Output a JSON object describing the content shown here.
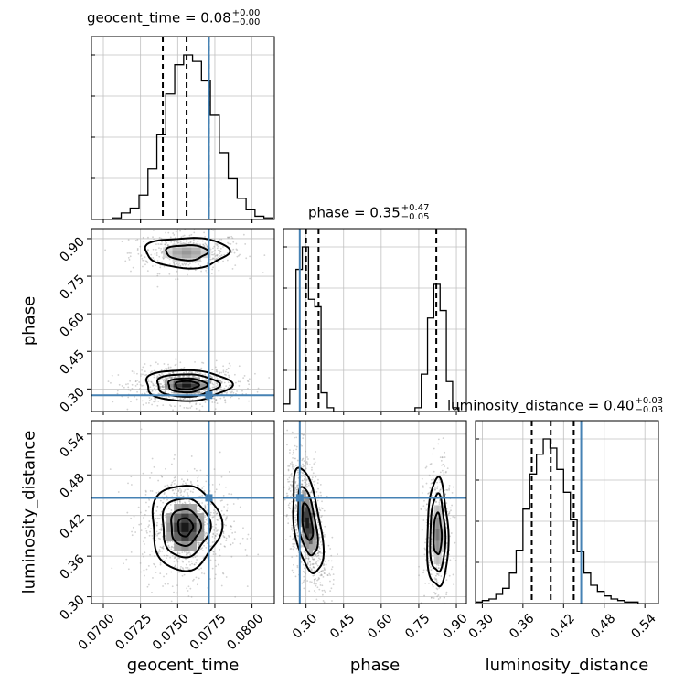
{
  "chart_data": {
    "type": "corner",
    "parameters": [
      "geocent_time",
      "phase",
      "luminosity_distance"
    ],
    "titles": [
      {
        "param": "geocent_time",
        "median": "0.08",
        "plus": "+0.00",
        "minus": "−0.00"
      },
      {
        "param": "phase",
        "median": "0.35",
        "plus": "+0.47",
        "minus": "−0.05"
      },
      {
        "param": "luminosity_distance",
        "median": "0.40",
        "plus": "+0.03",
        "minus": "−0.03"
      }
    ],
    "axis_labels": {
      "x": [
        "geocent_time",
        "phase",
        "luminosity_distance"
      ],
      "y": [
        "phase",
        "luminosity_distance"
      ]
    },
    "ranges": {
      "geocent_time": [
        0.0692,
        0.0815
      ],
      "phase": [
        0.21,
        0.94
      ],
      "luminosity_distance": [
        0.29,
        0.56
      ]
    },
    "ticks": {
      "geocent_time": [
        "0.0700",
        "0.0725",
        "0.0750",
        "0.0775",
        "0.0800"
      ],
      "phase": [
        "0.30",
        "0.45",
        "0.60",
        "0.75",
        "0.90"
      ],
      "luminosity_distance": [
        "0.30",
        "0.36",
        "0.42",
        "0.48",
        "0.54"
      ]
    },
    "truths": {
      "geocent_time": 0.0771,
      "phase": 0.275,
      "luminosity_distance": 0.446
    },
    "quantiles": {
      "geocent_time": [
        0.074,
        0.0756,
        0.0771
      ],
      "phase": [
        0.3,
        0.35,
        0.82
      ],
      "luminosity_distance": [
        0.373,
        0.401,
        0.435
      ]
    },
    "histograms": {
      "geocent_time": {
        "edges": [
          0.0706,
          0.0712,
          0.0718,
          0.0724,
          0.073,
          0.0736,
          0.0742,
          0.0748,
          0.0754,
          0.076,
          0.0766,
          0.0772,
          0.0778,
          0.0784,
          0.079,
          0.0796,
          0.0802,
          0.0808,
          0.0814
        ],
        "counts": [
          1,
          4,
          7,
          15,
          31,
          52,
          77,
          95,
          101,
          97,
          85,
          64,
          41,
          25,
          13,
          6,
          2,
          1
        ]
      },
      "phase": {
        "edges": [
          0.21,
          0.235,
          0.26,
          0.285,
          0.31,
          0.335,
          0.36,
          0.385,
          0.41,
          0.435,
          0.46,
          0.485,
          0.51,
          0.535,
          0.56,
          0.585,
          0.61,
          0.635,
          0.66,
          0.685,
          0.71,
          0.735,
          0.76,
          0.785,
          0.81,
          0.835,
          0.86,
          0.885,
          0.91
        ],
        "counts": [
          2,
          6,
          38,
          44,
          30,
          28,
          5,
          1,
          0,
          0,
          0,
          0,
          0,
          0,
          0,
          0,
          0,
          0,
          0,
          0,
          0,
          1,
          10,
          25,
          34,
          27,
          8,
          1
        ]
      },
      "luminosity_distance": {
        "edges": [
          0.29,
          0.3,
          0.31,
          0.32,
          0.33,
          0.34,
          0.35,
          0.36,
          0.37,
          0.38,
          0.39,
          0.4,
          0.41,
          0.42,
          0.43,
          0.44,
          0.45,
          0.46,
          0.47,
          0.48,
          0.49,
          0.5,
          0.51,
          0.52,
          0.53
        ],
        "counts": [
          1,
          2,
          3,
          6,
          10,
          20,
          35,
          62,
          85,
          98,
          108,
          102,
          88,
          73,
          55,
          34,
          20,
          12,
          8,
          5,
          3,
          2,
          1,
          1
        ]
      }
    },
    "contours_2d": [
      {
        "x": "geocent_time",
        "y": "phase",
        "modes": [
          {
            "center": [
              0.0756,
              0.845
            ],
            "spread": [
              0.0014,
              0.03
            ],
            "levels": [
              1.0,
              2.0
            ],
            "weight": 0.45
          },
          {
            "center": [
              0.0756,
              0.315
            ],
            "spread": [
              0.0013,
              0.028
            ],
            "levels": [
              0.6,
              1.0,
              1.6,
              2.2
            ],
            "weight": 1.0
          }
        ]
      },
      {
        "x": "geocent_time",
        "y": "luminosity_distance",
        "modes": [
          {
            "center": [
              0.0755,
              0.403
            ],
            "spread": [
              0.0011,
              0.03
            ],
            "levels": [
              0.45,
              0.9,
              1.45,
              2.1
            ],
            "weight": 1.0
          }
        ]
      },
      {
        "x": "phase",
        "y": "luminosity_distance",
        "modes": [
          {
            "center": [
              0.305,
              0.41
            ],
            "spread": [
              0.03,
              0.034
            ],
            "levels": [
              0.7,
              1.3,
              2.0
            ],
            "weight": 1.0,
            "tilt": -0.55
          },
          {
            "center": [
              0.825,
              0.392
            ],
            "spread": [
              0.02,
              0.038
            ],
            "levels": [
              0.8,
              1.5,
              2.1
            ],
            "weight": 0.6
          }
        ]
      }
    ],
    "colors": {
      "truth": "#4682b4",
      "histogram": "#000000",
      "grid": "#c0c0c0",
      "samples": "#9a9a9a"
    },
    "grid": true
  }
}
